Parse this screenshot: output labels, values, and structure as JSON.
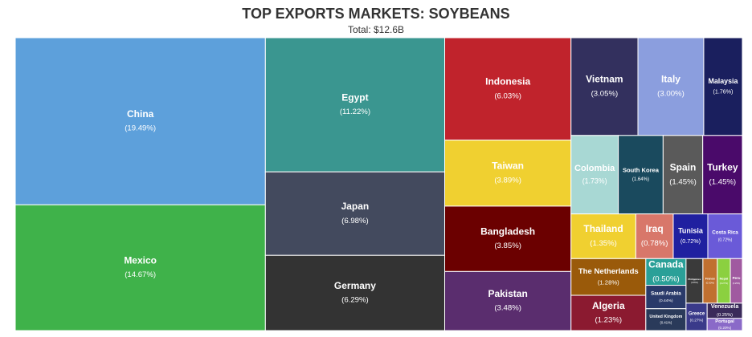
{
  "chart_data": {
    "type": "treemap",
    "title": "TOP EXPORTS MARKETS: SOYBEANS",
    "subtitle": "Total: $12.6B",
    "categories": [
      "China",
      "Mexico",
      "Egypt",
      "Japan",
      "Germany",
      "Indonesia",
      "Taiwan",
      "Bangladesh",
      "Pakistan",
      "Vietnam",
      "Italy",
      "Malaysia",
      "Colombia",
      "South Korea",
      "Spain",
      "Turkey",
      "Thailand",
      "Iraq",
      "Tunisia",
      "Costa Rica",
      "The Netherlands",
      "Algeria",
      "Canada",
      "Saudi Arabia",
      "United Kingdom",
      "Philippines",
      "France",
      "Nepal",
      "Peru",
      "Greece",
      "Venezuela",
      "Portugal"
    ],
    "values": [
      19.49,
      14.67,
      11.22,
      6.98,
      6.29,
      6.03,
      3.89,
      3.85,
      3.48,
      3.05,
      3.0,
      1.76,
      1.73,
      1.64,
      1.45,
      1.45,
      1.35,
      0.78,
      0.72,
      0.72,
      1.28,
      1.23,
      0.5,
      0.44,
      0.41,
      0.35,
      0.3,
      0.27,
      0.25,
      0.27,
      0.25,
      0.2
    ],
    "value_labels": [
      "(19.49%)",
      "(14.67%)",
      "(11.22%)",
      "(6.98%)",
      "(6.29%)",
      "(6.03%)",
      "(3.89%)",
      "(3.85%)",
      "(3.48%)",
      "(3.05%)",
      "(3.00%)",
      "(1.76%)",
      "(1.73%)",
      "(1.64%)",
      "(1.45%)",
      "(1.45%)",
      "(1.35%)",
      "(0.78%)",
      "(0.72%)",
      "(0.72%)",
      "(1.28%)",
      "(1.23%)",
      "(0.50%)",
      "(0.44%)",
      "(0.41%)",
      "(0.35%)",
      "(0.30%)",
      "(0.27%)",
      "(0.25%)",
      "(0.27%)",
      "(0.25%)",
      "(0.20%)"
    ],
    "colors": [
      "#5da0db",
      "#3fb24a",
      "#3a9690",
      "#434a5e",
      "#333333",
      "#c0232c",
      "#f0d030",
      "#6b0000",
      "#5a2d6e",
      "#33305e",
      "#8b9ede",
      "#1a1f5e",
      "#a8d8d4",
      "#1a4a5e",
      "#5a5a5a",
      "#4a0a6a",
      "#f0d030",
      "#d8776a",
      "#2020a0",
      "#6a5ad8",
      "#9a5a0a",
      "#8b1a30",
      "#2aa098",
      "#2a3a6a",
      "#2a3a5a",
      "#3a3a3a",
      "#c07030",
      "#8bd040",
      "#a05aa0",
      "#3a3a8a",
      "#3a2a5a",
      "#8a6ac8"
    ]
  }
}
